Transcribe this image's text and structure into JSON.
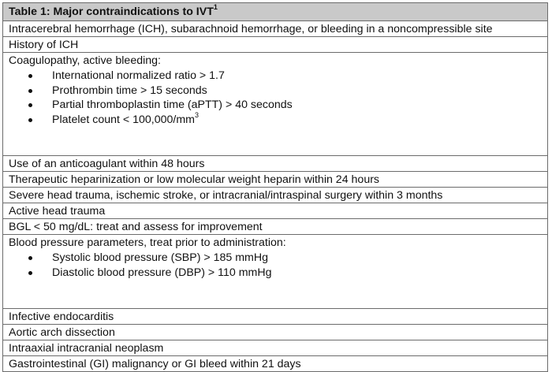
{
  "table": {
    "title": "Table 1: Major contraindications to IVT",
    "title_sup": "1",
    "rows": {
      "ich": "Intracerebral hemorrhage (ICH), subarachnoid hemorrhage, or bleeding in a noncompressible site",
      "history_ich": "History of ICH",
      "coag": {
        "label": "Coagulopathy, active bleeding:",
        "items": [
          "International normalized ratio > 1.7",
          "Prothrombin time > 15 seconds",
          "Partial thromboplastin time (aPTT) > 40 seconds",
          "Platelet count < 100,000/mm"
        ],
        "platelet_sup": "3"
      },
      "anticoag": "Use of an anticoagulant within 48 hours",
      "heparin": "Therapeutic heparinization or low molecular weight heparin within 24 hours",
      "trauma": "Severe head trauma, ischemic stroke, or intracranial/intraspinal surgery within 3 months",
      "active_head": "Active head trauma",
      "bgl": "BGL < 50 mg/dL: treat and assess for improvement",
      "bp": {
        "label": "Blood pressure parameters, treat prior to administration:",
        "items": [
          "Systolic blood pressure (SBP) > 185 mmHg",
          "Diastolic blood pressure (DBP) > 110 mmHg"
        ]
      },
      "endocarditis": "Infective endocarditis",
      "aortic": "Aortic arch dissection",
      "neoplasm": "Intraaxial intracranial neoplasm",
      "gi": "Gastrointestinal (GI) malignancy or GI bleed within 21 days"
    }
  }
}
